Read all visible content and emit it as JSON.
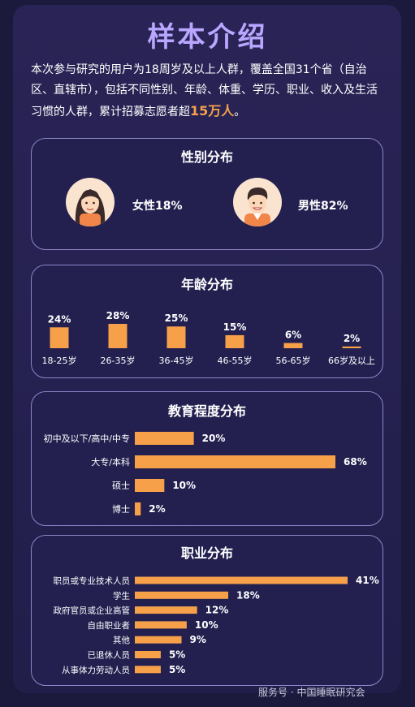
{
  "title": "样本介绍",
  "intro": {
    "text": "本次参与研究的用户为18周岁及以上人群，覆盖全国31个省（自治区、直辖市），包括不同性别、年龄、体重、学历、职业、收入及生活习惯的人群，累计招募志愿者超",
    "highlight": "15万人",
    "end": "。"
  },
  "gender": {
    "title": "性别分布",
    "female": "女性18%",
    "male": "男性82%"
  },
  "watermark": "服务号 · 中国睡眠研究会",
  "accent": "#f6a14a",
  "chart_data": [
    {
      "type": "bar",
      "title": "年龄分布",
      "categories": [
        "18-25岁",
        "26-35岁",
        "36-45岁",
        "46-55岁",
        "56-65岁",
        "66岁及以上"
      ],
      "values": [
        24,
        28,
        25,
        15,
        6,
        2
      ],
      "value_labels": [
        "24%",
        "28%",
        "25%",
        "15%",
        "6%",
        "2%"
      ],
      "unit": "%"
    },
    {
      "type": "bar",
      "orientation": "horizontal",
      "title": "教育程度分布",
      "categories": [
        "初中及以下/高中/中专",
        "大专/本科",
        "硕士",
        "博士"
      ],
      "values": [
        20,
        68,
        10,
        2
      ],
      "value_labels": [
        "20%",
        "68%",
        "10%",
        "2%"
      ],
      "unit": "%"
    },
    {
      "type": "bar",
      "orientation": "horizontal",
      "title": "职业分布",
      "categories": [
        "职员或专业技术人员",
        "学生",
        "政府官员或企业高管",
        "自由职业者",
        "其他",
        "已退休人员",
        "从事体力劳动人员"
      ],
      "values": [
        41,
        18,
        12,
        10,
        9,
        5,
        5
      ],
      "value_labels": [
        "41%",
        "18%",
        "12%",
        "10%",
        "9%",
        "5%",
        "5%"
      ],
      "unit": "%"
    }
  ]
}
